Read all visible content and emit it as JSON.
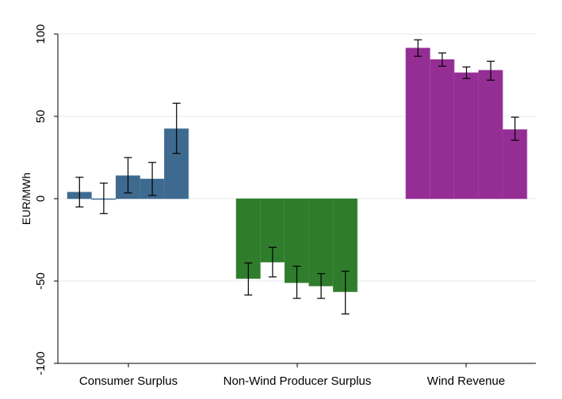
{
  "chart_data": {
    "type": "bar",
    "title": "",
    "xlabel": "",
    "ylabel": "EUR/MWh",
    "ylim": [
      -100,
      100
    ],
    "yticks": [
      100,
      50,
      0,
      -50,
      -100
    ],
    "grid": true,
    "legend": "none",
    "error_bars": true,
    "groups": [
      {
        "label": "Consumer Surplus",
        "color": "#3e6a8f",
        "values": [
          4,
          0,
          14,
          12,
          42.5
        ],
        "ci_low": [
          -5,
          -9,
          3.5,
          2,
          27.5
        ],
        "ci_high": [
          13,
          9.5,
          25,
          22,
          58
        ]
      },
      {
        "label": "Non-Wind Producer Surplus",
        "color": "#2f7d2c",
        "values": [
          -48.5,
          -38.5,
          -51,
          -53,
          -56.5
        ],
        "ci_low": [
          -58.5,
          -47.5,
          -60.5,
          -60.5,
          -70
        ],
        "ci_high": [
          -39,
          -29.5,
          -41,
          -45.5,
          -44
        ]
      },
      {
        "label": "Wind Revenue",
        "color": "#942e94",
        "values": [
          91.5,
          84.5,
          76.5,
          78,
          42
        ],
        "ci_low": [
          86.5,
          80.5,
          73,
          72,
          35.5
        ],
        "ci_high": [
          96.5,
          88.5,
          80,
          83.5,
          49.5
        ]
      }
    ]
  }
}
